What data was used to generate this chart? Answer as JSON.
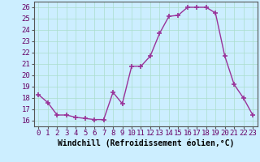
{
  "x": [
    0,
    1,
    2,
    3,
    4,
    5,
    6,
    7,
    8,
    9,
    10,
    11,
    12,
    13,
    14,
    15,
    16,
    17,
    18,
    19,
    20,
    21,
    22,
    23
  ],
  "y": [
    18.3,
    17.6,
    16.5,
    16.5,
    16.3,
    16.2,
    16.1,
    16.1,
    18.5,
    17.5,
    20.8,
    20.8,
    21.7,
    23.7,
    25.2,
    25.3,
    26.0,
    26.0,
    26.0,
    25.5,
    21.7,
    19.2,
    18.0,
    16.5
  ],
  "line_color": "#993399",
  "marker_color": "#993399",
  "bg_color": "#cceeff",
  "grid_color": "#aaddcc",
  "xlabel": "Windchill (Refroidissement éolien,°C)",
  "xlim": [
    -0.5,
    23.5
  ],
  "ylim": [
    15.5,
    26.5
  ],
  "yticks": [
    16,
    17,
    18,
    19,
    20,
    21,
    22,
    23,
    24,
    25,
    26
  ],
  "xticks": [
    0,
    1,
    2,
    3,
    4,
    5,
    6,
    7,
    8,
    9,
    10,
    11,
    12,
    13,
    14,
    15,
    16,
    17,
    18,
    19,
    20,
    21,
    22,
    23
  ],
  "tick_fontsize": 6.5,
  "label_fontsize": 7,
  "marker_size": 4,
  "line_width": 1.0
}
